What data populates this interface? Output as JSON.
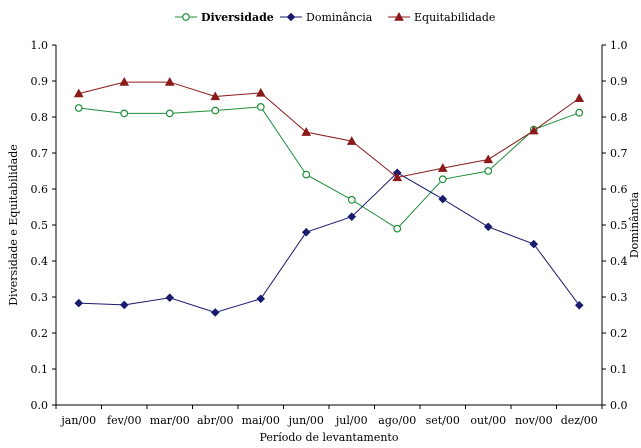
{
  "chart_data": {
    "type": "line",
    "title": "",
    "xlabel": "Período de levantamento",
    "ylabel_left": "Diversidade e Equitabilidade",
    "ylabel_right": "Dominância",
    "ylim_left": [
      0,
      1
    ],
    "ylim_right": [
      0,
      1
    ],
    "yticks": [
      "0.0",
      "0.1",
      "0.2",
      "0.3",
      "0.4",
      "0.5",
      "0.6",
      "0.7",
      "0.8",
      "0.9",
      "1.0"
    ],
    "grid": false,
    "legend_position": "top-center",
    "categories": [
      "jan/00",
      "fev/00",
      "mar/00",
      "abr/00",
      "mai/00",
      "jun/00",
      "jul/00",
      "ago/00",
      "set/00",
      "out/00",
      "nov/00",
      "dez/00"
    ],
    "series": [
      {
        "name": "Diversidade",
        "axis": "left",
        "color": "#1f8f3a",
        "marker": "open-circle",
        "values": [
          0.825,
          0.81,
          0.81,
          0.818,
          0.828,
          0.64,
          0.57,
          0.49,
          0.627,
          0.65,
          0.765,
          0.812
        ]
      },
      {
        "name": "Dominância",
        "axis": "right",
        "color": "#1a1a6e",
        "marker": "diamond",
        "values": [
          0.283,
          0.278,
          0.298,
          0.257,
          0.295,
          0.48,
          0.523,
          0.645,
          0.572,
          0.495,
          0.447,
          0.277
        ]
      },
      {
        "name": "Equitabilidade",
        "axis": "left",
        "color": "#8b1a1a",
        "marker": "triangle",
        "values": [
          0.865,
          0.897,
          0.897,
          0.857,
          0.867,
          0.758,
          0.733,
          0.632,
          0.658,
          0.682,
          0.762,
          0.852
        ]
      }
    ]
  }
}
